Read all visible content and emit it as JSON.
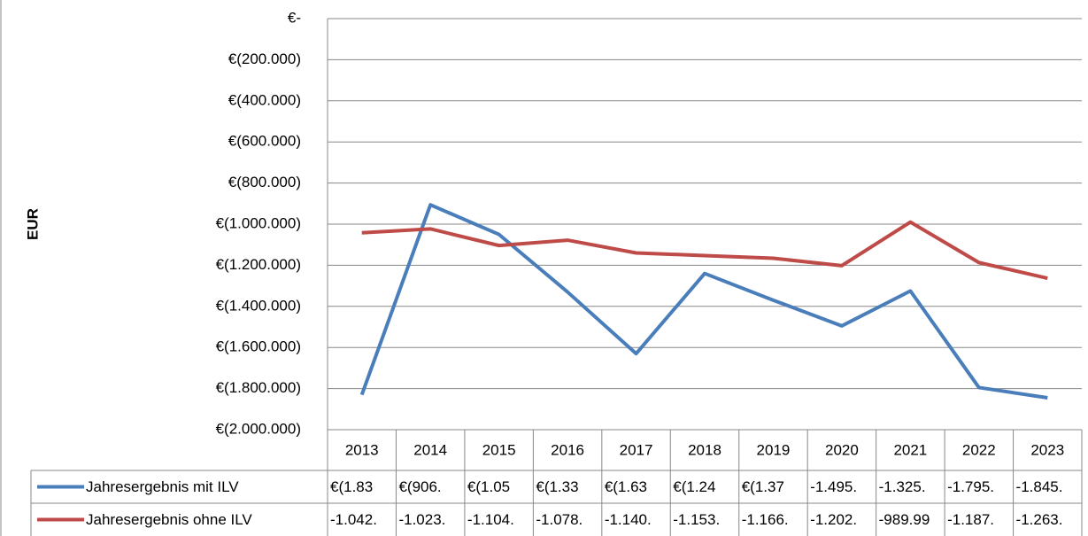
{
  "chart_data": {
    "type": "line",
    "y_label": "EUR",
    "categories": [
      "2013",
      "2014",
      "2015",
      "2016",
      "2017",
      "2018",
      "2019",
      "2020",
      "2021",
      "2022",
      "2023"
    ],
    "series": [
      {
        "name": "Jahresergebnis mit ILV",
        "color": "#4a7ebb",
        "values": [
          -1830000,
          -906000,
          -1050000,
          -1330000,
          -1630000,
          -1240000,
          -1370000,
          -1495000,
          -1325000,
          -1795000,
          -1845000
        ],
        "value_labels": [
          "€(1.83",
          "€(906.",
          "€(1.05",
          "€(1.33",
          "€(1.63",
          "€(1.24",
          "€(1.37",
          "-1.495.",
          "-1.325.",
          "-1.795.",
          "-1.845."
        ]
      },
      {
        "name": "Jahresergebnis ohne ILV",
        "color": "#be4b48",
        "values": [
          -1042000,
          -1023000,
          -1104000,
          -1078000,
          -1140000,
          -1153000,
          -1166000,
          -1202000,
          -989990,
          -1187000,
          -1263000
        ],
        "value_labels": [
          "-1.042.",
          "-1.023.",
          "-1.104.",
          "-1.078.",
          "-1.140.",
          "-1.153.",
          "-1.166.",
          "-1.202.",
          "-989.99",
          "-1.187.",
          "-1.263."
        ]
      }
    ],
    "ylim": [
      -2000000,
      0
    ],
    "yticks": [
      {
        "value": 0,
        "label": "€-"
      },
      {
        "value": -200000,
        "label": "€(200.000)"
      },
      {
        "value": -400000,
        "label": "€(400.000)"
      },
      {
        "value": -600000,
        "label": "€(600.000)"
      },
      {
        "value": -800000,
        "label": "€(800.000)"
      },
      {
        "value": -1000000,
        "label": "€(1.000.000)"
      },
      {
        "value": -1200000,
        "label": "€(1.200.000)"
      },
      {
        "value": -1400000,
        "label": "€(1.400.000)"
      },
      {
        "value": -1600000,
        "label": "€(1.600.000)"
      },
      {
        "value": -1800000,
        "label": "€(1.800.000)"
      },
      {
        "value": -2000000,
        "label": "€(2.000.000)"
      }
    ],
    "grid": true
  }
}
